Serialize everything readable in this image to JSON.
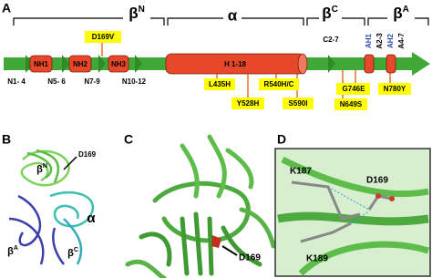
{
  "panel_a": {
    "label": "A",
    "domains": [
      {
        "symbol": "β",
        "sup": "N"
      },
      {
        "symbol": "α"
      },
      {
        "symbol": "β",
        "sup": "C"
      },
      {
        "symbol": "β",
        "sup": "A"
      }
    ],
    "elements": [
      "NH1",
      "NH2",
      "NH3",
      "H 1-18",
      "C2-7",
      "AH1",
      "A2-3",
      "AH2",
      "A4-7"
    ],
    "strands": [
      "N1- 4",
      "N5- 6",
      "N7-9",
      "N10-12"
    ],
    "mutations": [
      "D169V",
      "L435H",
      "Y528H",
      "R540H/C",
      "S590I",
      "G746E",
      "N649S",
      "N780Y"
    ]
  },
  "panel_b": {
    "label": "B",
    "residue": "D169",
    "domains": [
      {
        "symbol": "β",
        "sup": "N"
      },
      {
        "symbol": "α"
      },
      {
        "symbol": "β",
        "sup": "A"
      },
      {
        "symbol": "β",
        "sup": "C"
      }
    ]
  },
  "panel_c": {
    "label": "C",
    "residue": "D169"
  },
  "panel_d": {
    "label": "D",
    "residues": [
      "K187",
      "D169",
      "K189"
    ]
  }
}
